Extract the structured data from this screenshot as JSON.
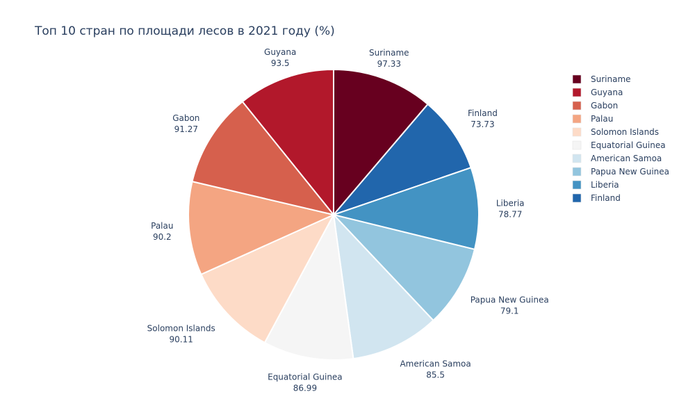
{
  "chart_data": {
    "type": "pie",
    "title": "Топ 10 стран по площади лесов в 2021 году (%)",
    "direction": "clockwise",
    "start": "top",
    "slices": [
      {
        "label": "Suriname",
        "value": 97.33,
        "color": "#67001f"
      },
      {
        "label": "Finland",
        "value": 73.73,
        "color": "#2166ac"
      },
      {
        "label": "Liberia",
        "value": 78.77,
        "color": "#4393c3"
      },
      {
        "label": "Papua New Guinea",
        "value": 79.1,
        "color": "#92c5de"
      },
      {
        "label": "American Samoa",
        "value": 85.5,
        "color": "#d1e5f0"
      },
      {
        "label": "Equatorial Guinea",
        "value": 86.99,
        "color": "#f5f5f5"
      },
      {
        "label": "Solomon Islands",
        "value": 90.11,
        "color": "#fddbc7"
      },
      {
        "label": "Palau",
        "value": 90.2,
        "color": "#f4a582"
      },
      {
        "label": "Gabon",
        "value": 91.27,
        "color": "#d6604d"
      },
      {
        "label": "Guyana",
        "value": 93.5,
        "color": "#b2182b"
      }
    ],
    "legend": {
      "placement": "right",
      "entries": [
        "Suriname",
        "Guyana",
        "Gabon",
        "Palau",
        "Solomon Islands",
        "Equatorial Guinea",
        "American Samoa",
        "Papua New Guinea",
        "Liberia",
        "Finland"
      ]
    }
  }
}
